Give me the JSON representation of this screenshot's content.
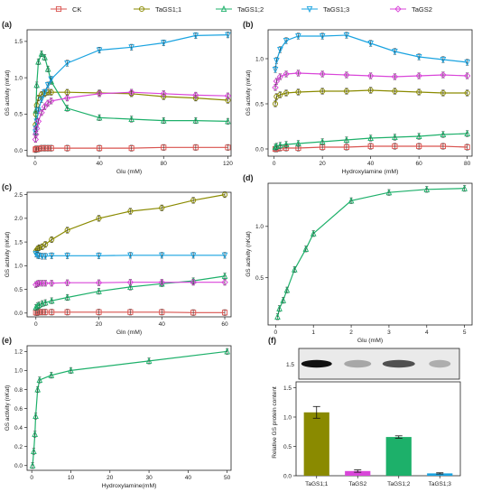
{
  "legend": [
    {
      "label": "CK",
      "color": "#d9534f",
      "marker": "square"
    },
    {
      "label": "TaGS1;1",
      "color": "#8a8a00",
      "marker": "circle"
    },
    {
      "label": "TaGS1;2",
      "color": "#1db06a",
      "marker": "triangle-up"
    },
    {
      "label": "TaGS1;3",
      "color": "#1aa3e0",
      "marker": "triangle-down"
    },
    {
      "label": "TaGS2",
      "color": "#d946d9",
      "marker": "diamond"
    }
  ],
  "chart_data": [
    {
      "id": "a",
      "type": "line",
      "panel_label": "(a)",
      "xlabel": "Glu (mM)",
      "ylabel": "GS activity (nKat)",
      "xlim": [
        -5,
        122
      ],
      "ylim": [
        -0.08,
        1.66
      ],
      "xticks": [
        0,
        40,
        80,
        120
      ],
      "yticks": [
        0.0,
        0.5,
        1.0,
        1.5
      ],
      "series": [
        {
          "name": "CK",
          "x": [
            0.25,
            0.5,
            1,
            2,
            4,
            6,
            8,
            10,
            20,
            40,
            60,
            80,
            100,
            120
          ],
          "y": [
            0.01,
            0.02,
            0.02,
            0.02,
            0.03,
            0.03,
            0.03,
            0.03,
            0.03,
            0.03,
            0.03,
            0.04,
            0.04,
            0.04
          ]
        },
        {
          "name": "TaGS1;1",
          "x": [
            0.25,
            0.5,
            1,
            2,
            4,
            6,
            8,
            10,
            20,
            40,
            60,
            80,
            100,
            120
          ],
          "y": [
            0.35,
            0.5,
            0.62,
            0.72,
            0.77,
            0.78,
            0.8,
            0.8,
            0.8,
            0.79,
            0.78,
            0.74,
            0.72,
            0.69
          ]
        },
        {
          "name": "TaGS1;2",
          "x": [
            0.25,
            0.5,
            1,
            2,
            4,
            6,
            8,
            10,
            20,
            40,
            60,
            80,
            100,
            120
          ],
          "y": [
            0.25,
            0.55,
            0.9,
            1.22,
            1.33,
            1.28,
            1.12,
            0.95,
            0.58,
            0.45,
            0.43,
            0.41,
            0.41,
            0.4
          ]
        },
        {
          "name": "TaGS1;3",
          "x": [
            0.25,
            0.5,
            1,
            2,
            4,
            6,
            8,
            10,
            20,
            40,
            60,
            80,
            100,
            120
          ],
          "y": [
            0.25,
            0.3,
            0.4,
            0.55,
            0.7,
            0.8,
            0.9,
            0.98,
            1.2,
            1.38,
            1.42,
            1.48,
            1.58,
            1.59
          ]
        },
        {
          "name": "TaGS2",
          "x": [
            0.25,
            0.5,
            1,
            2,
            4,
            6,
            8,
            10,
            20,
            40,
            60,
            80,
            100,
            120
          ],
          "y": [
            0.15,
            0.22,
            0.3,
            0.4,
            0.52,
            0.6,
            0.65,
            0.68,
            0.72,
            0.78,
            0.8,
            0.78,
            0.76,
            0.75
          ]
        }
      ]
    },
    {
      "id": "b",
      "type": "line",
      "panel_label": "(b)",
      "xlabel": "Hydroxylamine (mM)",
      "ylabel": "GS activity (nKat)",
      "xlim": [
        -2.5,
        82
      ],
      "ylim": [
        -0.08,
        1.32
      ],
      "xticks": [
        0,
        20,
        40,
        60,
        80
      ],
      "yticks": [
        0.0,
        0.5,
        1.0
      ],
      "series": [
        {
          "name": "CK",
          "x": [
            0.5,
            1,
            2.5,
            5,
            10,
            20,
            30,
            40,
            50,
            60,
            70,
            80
          ],
          "y": [
            0.0,
            0.0,
            0.01,
            0.01,
            0.01,
            0.02,
            0.02,
            0.03,
            0.03,
            0.03,
            0.03,
            0.02
          ]
        },
        {
          "name": "TaGS1;1",
          "x": [
            0.5,
            1,
            2.5,
            5,
            10,
            20,
            30,
            40,
            50,
            60,
            70,
            80
          ],
          "y": [
            0.5,
            0.58,
            0.6,
            0.62,
            0.63,
            0.64,
            0.64,
            0.65,
            0.64,
            0.63,
            0.62,
            0.62
          ]
        },
        {
          "name": "TaGS1;2",
          "x": [
            0.5,
            1,
            2.5,
            5,
            10,
            20,
            30,
            40,
            50,
            60,
            70,
            80
          ],
          "y": [
            0.02,
            0.03,
            0.04,
            0.05,
            0.06,
            0.08,
            0.1,
            0.12,
            0.13,
            0.14,
            0.16,
            0.17
          ]
        },
        {
          "name": "TaGS1;3",
          "x": [
            0.5,
            1,
            2.5,
            5,
            10,
            20,
            30,
            40,
            50,
            60,
            70,
            80
          ],
          "y": [
            0.88,
            0.98,
            1.1,
            1.2,
            1.25,
            1.25,
            1.26,
            1.17,
            1.08,
            1.02,
            0.99,
            0.96
          ]
        },
        {
          "name": "TaGS2",
          "x": [
            0.5,
            1,
            2.5,
            5,
            10,
            20,
            30,
            40,
            50,
            60,
            70,
            80
          ],
          "y": [
            0.68,
            0.75,
            0.8,
            0.83,
            0.84,
            0.83,
            0.82,
            0.81,
            0.8,
            0.81,
            0.82,
            0.81
          ]
        }
      ]
    },
    {
      "id": "c",
      "type": "line",
      "panel_label": "(c)",
      "xlabel": "Gln (mM)",
      "ylabel": "GS activity (nKat)",
      "xlim": [
        -2.8,
        62
      ],
      "ylim": [
        -0.08,
        2.55
      ],
      "xticks": [
        0,
        20,
        40,
        60
      ],
      "yticks": [
        0.0,
        0.5,
        1.0,
        1.5,
        2.0,
        2.5
      ],
      "series": [
        {
          "name": "CK",
          "x": [
            0,
            0.5,
            1,
            2,
            3,
            5,
            10,
            20,
            30,
            40,
            50,
            60
          ],
          "y": [
            0.01,
            0.01,
            0.02,
            0.02,
            0.02,
            0.02,
            0.02,
            0.02,
            0.02,
            0.02,
            0.01,
            0.01
          ]
        },
        {
          "name": "TaGS1;1",
          "x": [
            0,
            0.5,
            1,
            2,
            3,
            5,
            10,
            20,
            30,
            40,
            50,
            60
          ],
          "y": [
            1.3,
            1.35,
            1.38,
            1.4,
            1.45,
            1.55,
            1.75,
            2.0,
            2.15,
            2.22,
            2.38,
            2.5
          ]
        },
        {
          "name": "TaGS1;2",
          "x": [
            0,
            0.5,
            1,
            2,
            3,
            5,
            10,
            20,
            30,
            40,
            50,
            60
          ],
          "y": [
            0.12,
            0.15,
            0.17,
            0.2,
            0.22,
            0.26,
            0.33,
            0.46,
            0.55,
            0.62,
            0.68,
            0.78
          ]
        },
        {
          "name": "TaGS1;3",
          "x": [
            0,
            0.5,
            1,
            2,
            3,
            5,
            10,
            20,
            30,
            40,
            50,
            60
          ],
          "y": [
            1.25,
            1.22,
            1.21,
            1.2,
            1.2,
            1.21,
            1.21,
            1.21,
            1.22,
            1.22,
            1.22,
            1.22
          ]
        },
        {
          "name": "TaGS2",
          "x": [
            0,
            0.5,
            1,
            2,
            3,
            5,
            10,
            20,
            30,
            40,
            50,
            60
          ],
          "y": [
            0.6,
            0.62,
            0.63,
            0.63,
            0.63,
            0.63,
            0.64,
            0.64,
            0.65,
            0.65,
            0.65,
            0.65
          ]
        }
      ]
    },
    {
      "id": "d",
      "type": "line",
      "panel_label": "(d)",
      "xlabel": "Glu (mM)",
      "ylabel": "GS activity (nKat)",
      "xlim": [
        -0.2,
        5.2
      ],
      "ylim": [
        0.04,
        1.42
      ],
      "xticks": [
        0,
        1,
        2,
        3,
        4,
        5
      ],
      "yticks": [
        0.5,
        1.0
      ],
      "series": [
        {
          "name": "TaGS1;2",
          "x": [
            0.05,
            0.1,
            0.2,
            0.3,
            0.5,
            0.8,
            1,
            2,
            3,
            4,
            5
          ],
          "y": [
            0.12,
            0.2,
            0.28,
            0.38,
            0.58,
            0.78,
            0.93,
            1.25,
            1.33,
            1.36,
            1.37
          ]
        }
      ]
    },
    {
      "id": "e",
      "type": "line",
      "panel_label": "(e)",
      "xlabel": "Hydroxylamine(mM)",
      "ylabel": "GS activity (nKat)",
      "xlim": [
        -1.2,
        51
      ],
      "ylim": [
        -0.05,
        1.26
      ],
      "xticks": [
        0,
        10,
        20,
        30,
        40,
        50
      ],
      "yticks": [
        0.0,
        0.2,
        0.4,
        0.6,
        0.8,
        1.0,
        1.2
      ],
      "series": [
        {
          "name": "TaGS1;2",
          "x": [
            0.2,
            0.5,
            0.8,
            1,
            1.5,
            2,
            5,
            10,
            30,
            50
          ],
          "y": [
            0.0,
            0.15,
            0.33,
            0.52,
            0.8,
            0.9,
            0.95,
            1.0,
            1.1,
            1.2
          ]
        }
      ]
    },
    {
      "id": "f",
      "type": "bar",
      "panel_label": "(f)",
      "ylabel": "Relative GS protein content",
      "categories": [
        "TaGS1;1",
        "TaGS2",
        "TaGS1;2",
        "TaGS1;3"
      ],
      "values": [
        1.08,
        0.08,
        0.66,
        0.04
      ],
      "errors": [
        0.1,
        0.02,
        0.02,
        0.01
      ],
      "colors": [
        "#8a8a00",
        "#d946d9",
        "#1db06a",
        "#1aa3e0"
      ],
      "ylim": [
        0,
        1.6
      ],
      "yticks": [
        0.0,
        0.5,
        1.0,
        1.5
      ]
    }
  ]
}
